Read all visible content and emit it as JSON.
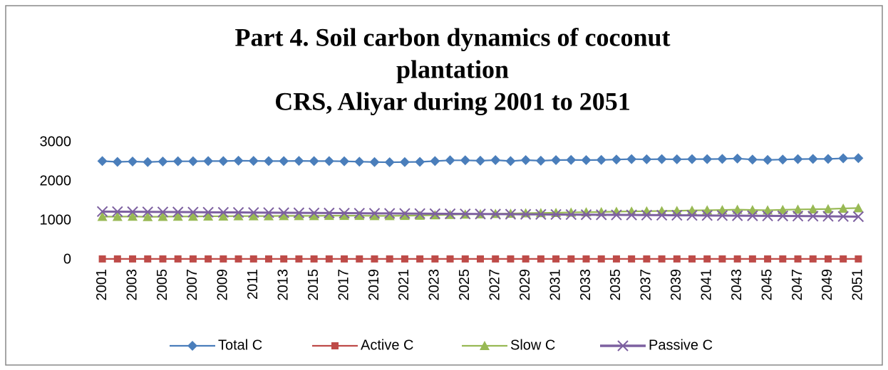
{
  "chart_data": {
    "type": "line",
    "title": [
      "Part 4. Soil carbon dynamics of coconut",
      "plantation",
      "CRS, Aliyar during 2001 to 2051"
    ],
    "categories": [
      "2001",
      null,
      "2003",
      null,
      "2005",
      null,
      "2007",
      null,
      "2009",
      null,
      "2011",
      null,
      "2013",
      null,
      "2015",
      null,
      "2017",
      null,
      "2019",
      null,
      "2021",
      null,
      "2023",
      null,
      "2025",
      null,
      "2027",
      null,
      "2029",
      null,
      "2031",
      null,
      "2033",
      null,
      "2035",
      null,
      "2037",
      null,
      "2039",
      null,
      "2041",
      null,
      "2043",
      null,
      "2045",
      null,
      "2047",
      null,
      "2049",
      null,
      "2051"
    ],
    "series": [
      {
        "name": "Total C",
        "color": "#4a7ebb",
        "marker": "diamond",
        "values": [
          2520,
          2500,
          2510,
          2495,
          2510,
          2515,
          2515,
          2520,
          2520,
          2530,
          2525,
          2520,
          2520,
          2525,
          2520,
          2520,
          2515,
          2505,
          2495,
          2490,
          2495,
          2500,
          2520,
          2540,
          2540,
          2530,
          2545,
          2520,
          2545,
          2530,
          2545,
          2550,
          2545,
          2550,
          2560,
          2570,
          2565,
          2570,
          2565,
          2570,
          2570,
          2575,
          2585,
          2560,
          2550,
          2560,
          2570,
          2575,
          2575,
          2590,
          2595
        ]
      },
      {
        "name": "Active C",
        "color": "#be4b48",
        "marker": "square",
        "values": [
          20,
          20,
          20,
          20,
          20,
          20,
          20,
          20,
          20,
          20,
          20,
          20,
          20,
          20,
          20,
          20,
          20,
          20,
          20,
          20,
          20,
          20,
          20,
          20,
          20,
          20,
          20,
          20,
          20,
          20,
          20,
          20,
          20,
          20,
          20,
          20,
          20,
          20,
          20,
          20,
          20,
          20,
          20,
          20,
          20,
          20,
          20,
          20,
          20,
          20,
          20
        ]
      },
      {
        "name": "Slow C",
        "color": "#98b954",
        "marker": "triangle",
        "values": [
          1100,
          1100,
          1105,
          1095,
          1100,
          1105,
          1105,
          1110,
          1110,
          1115,
          1115,
          1115,
          1120,
          1120,
          1120,
          1125,
          1125,
          1125,
          1120,
          1120,
          1125,
          1130,
          1140,
          1150,
          1160,
          1165,
          1175,
          1180,
          1190,
          1195,
          1200,
          1210,
          1215,
          1220,
          1230,
          1235,
          1240,
          1245,
          1250,
          1260,
          1265,
          1270,
          1280,
          1270,
          1265,
          1275,
          1285,
          1290,
          1295,
          1310,
          1320
        ]
      },
      {
        "name": "Passive C",
        "color": "#7d60a0",
        "marker": "x",
        "values": [
          1230,
          1228,
          1225,
          1222,
          1220,
          1218,
          1215,
          1212,
          1210,
          1208,
          1205,
          1203,
          1200,
          1198,
          1195,
          1193,
          1190,
          1188,
          1185,
          1183,
          1180,
          1178,
          1175,
          1173,
          1170,
          1168,
          1165,
          1163,
          1160,
          1158,
          1155,
          1153,
          1150,
          1148,
          1145,
          1143,
          1140,
          1138,
          1135,
          1133,
          1130,
          1128,
          1125,
          1123,
          1120,
          1118,
          1115,
          1113,
          1110,
          1105,
          1100
        ]
      }
    ],
    "ylim": [
      0,
      3000
    ],
    "yticks": [
      0,
      1000,
      2000,
      3000
    ],
    "grid": false,
    "legend": "bottom"
  }
}
